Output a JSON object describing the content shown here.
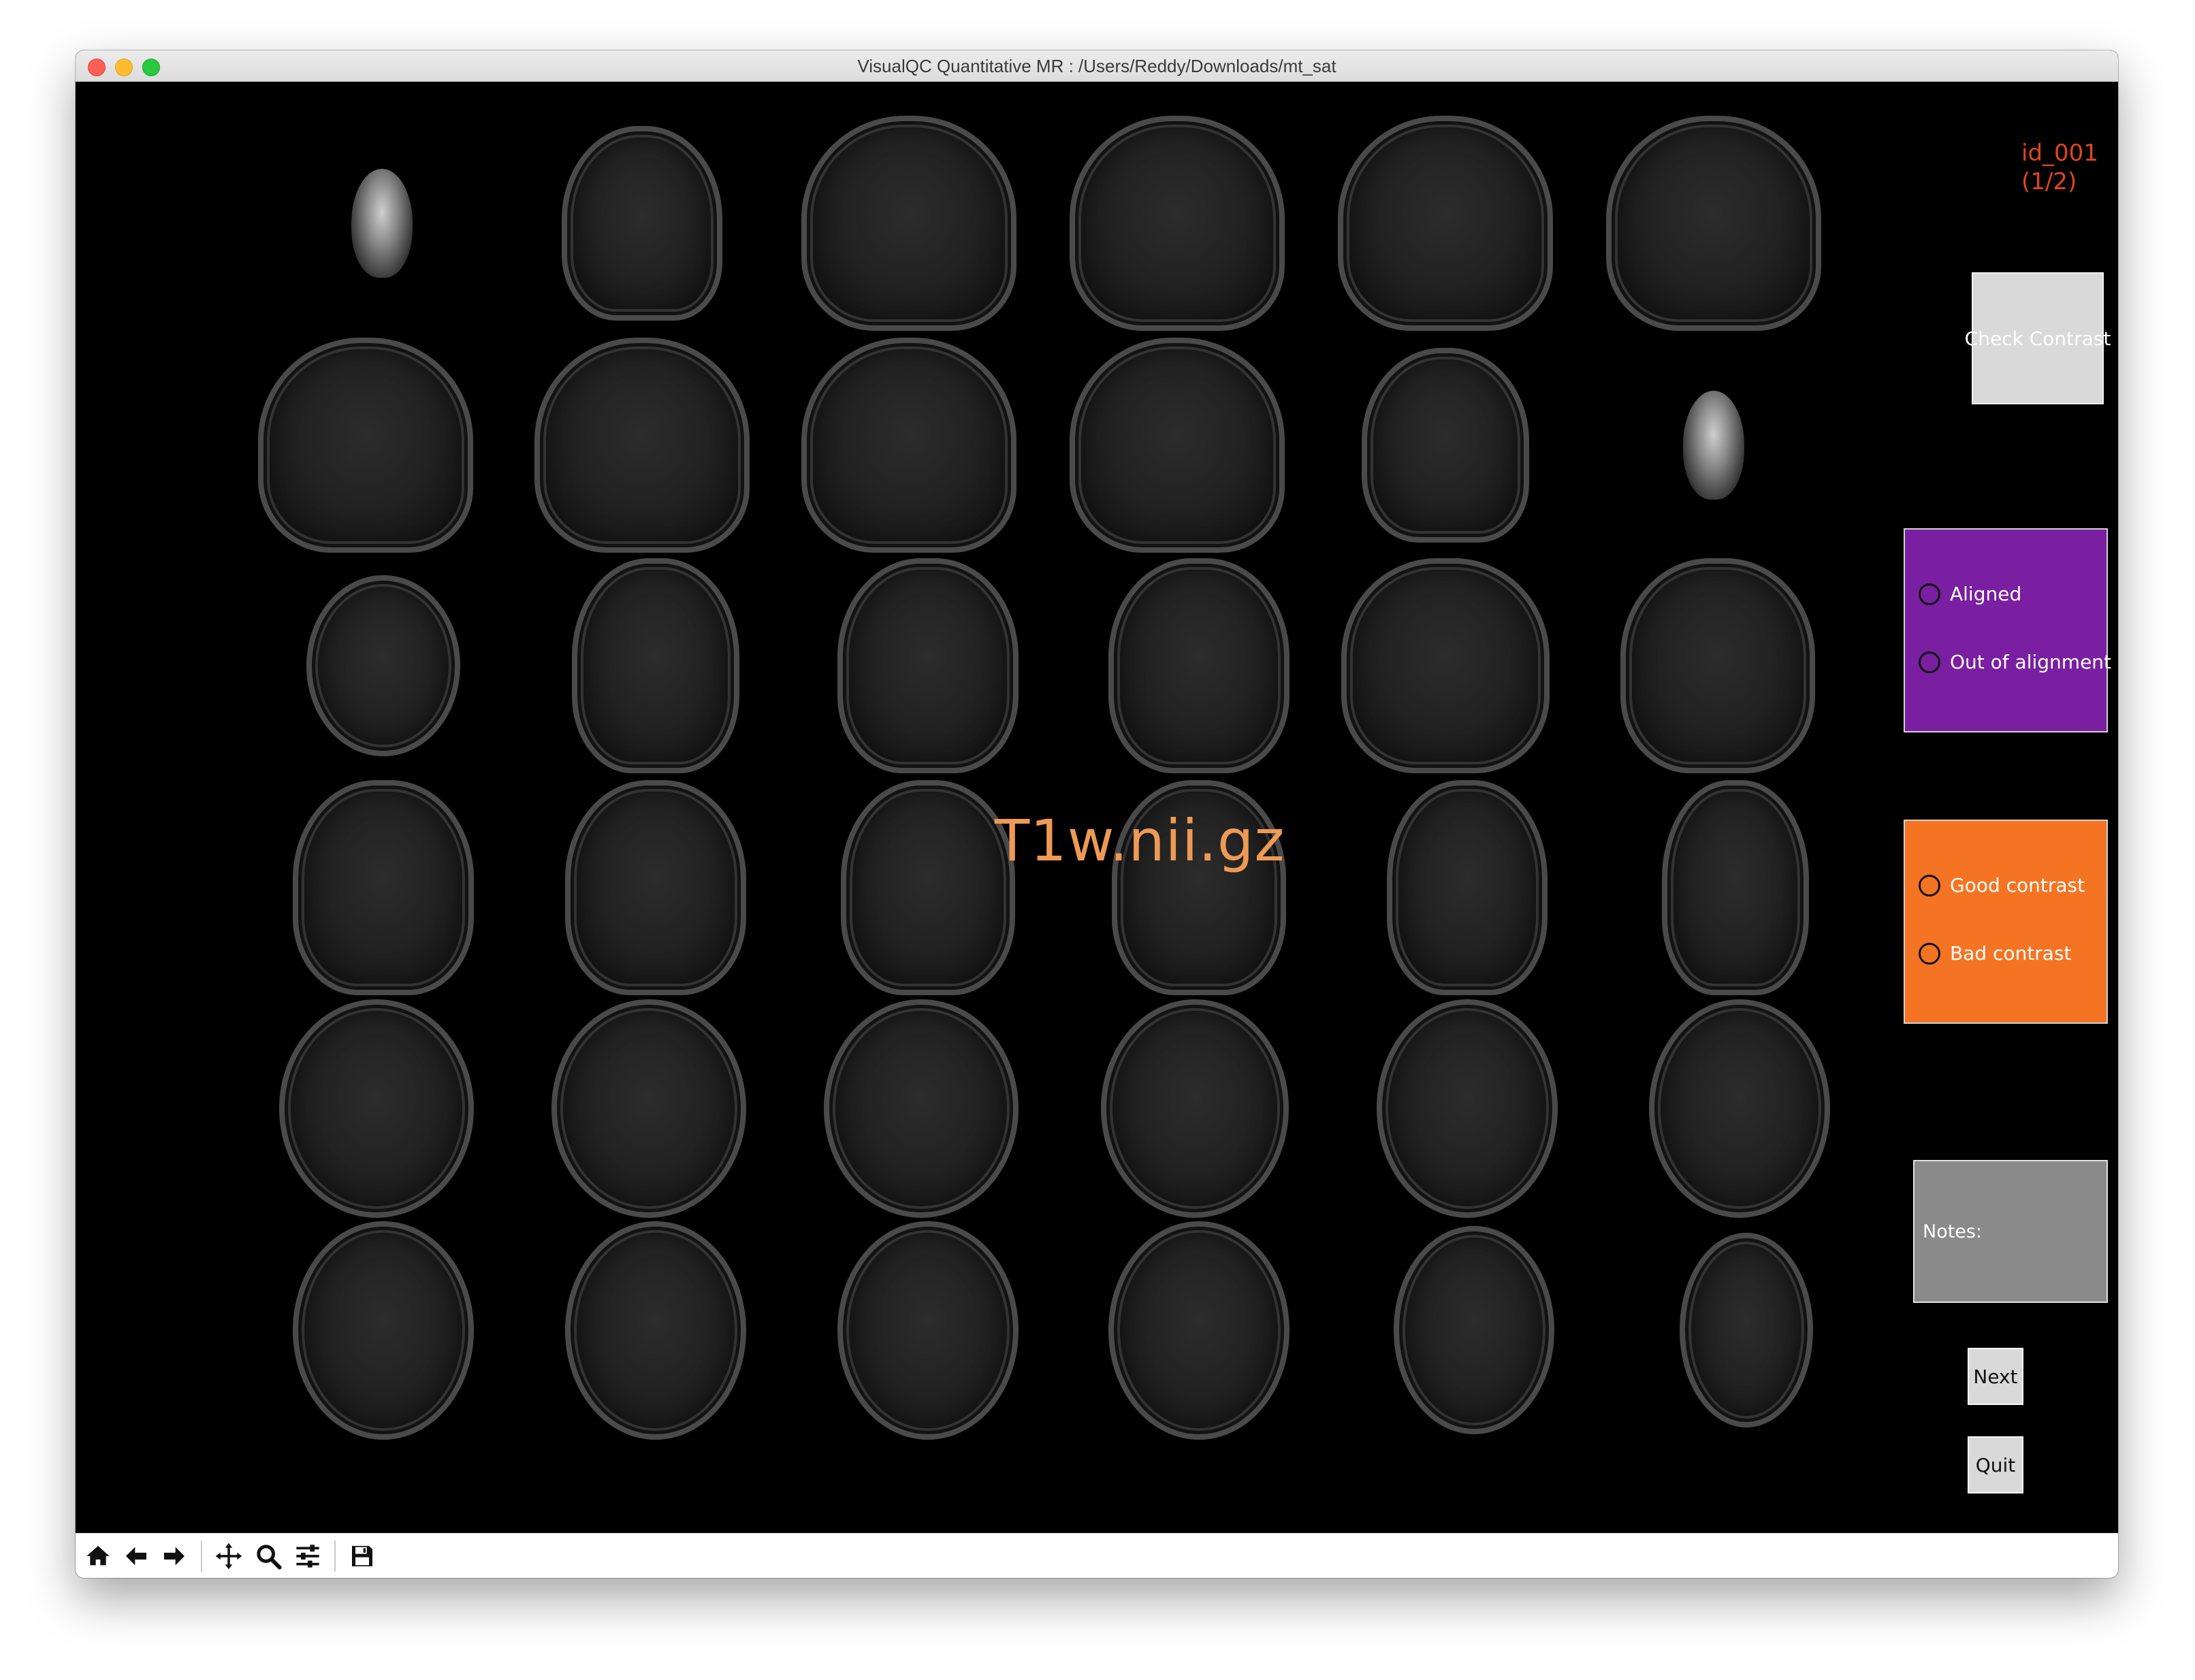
{
  "window": {
    "title": "VisualQC Quantitative MR : /Users/Reddy/Downloads/mt_sat"
  },
  "canvas": {
    "overlay_title": "T1w.nii.gz",
    "subject_id": "id_001",
    "subject_progress": "(1/2)"
  },
  "controls": {
    "check_contrast_label": "Check Contrast",
    "alignment_panel": {
      "color": "#7a1fa2",
      "options": [
        "Aligned",
        "Out of alignment"
      ]
    },
    "contrast_panel": {
      "color": "#f57423",
      "options": [
        "Good contrast",
        "Bad contrast"
      ]
    },
    "notes_label": "Notes:",
    "next_label": "Next",
    "quit_label": "Quit"
  },
  "toolbar": {
    "tools": [
      "home-icon",
      "back-icon",
      "forward-icon",
      "pan-icon",
      "zoom-icon",
      "configure-subplots-icon",
      "save-icon"
    ]
  },
  "colors": {
    "overlay_title": "#ee9a55",
    "subject_id": "#e0451c"
  }
}
